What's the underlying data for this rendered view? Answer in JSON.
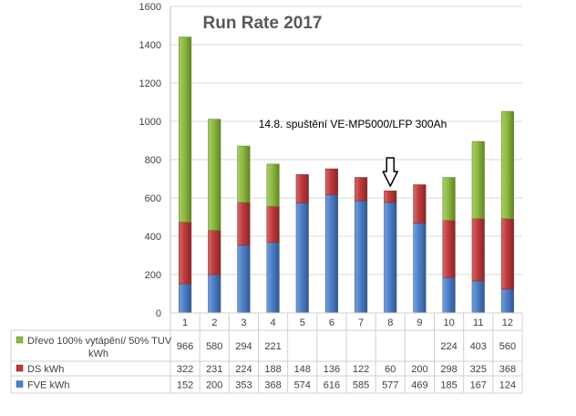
{
  "chart_data": {
    "type": "bar",
    "stacked": true,
    "title": "Run Rate 2017",
    "annotation": "14.8. spuštění VE-MP5000/LFP 300Ah",
    "annotation_category": "8",
    "categories": [
      "1",
      "2",
      "3",
      "4",
      "5",
      "6",
      "7",
      "8",
      "9",
      "10",
      "11",
      "12"
    ],
    "ylim": [
      0,
      1600
    ],
    "yticks": [
      0,
      200,
      400,
      600,
      800,
      1000,
      1200,
      1400,
      1600
    ],
    "grid": true,
    "xlabel": "",
    "ylabel": "",
    "series": [
      {
        "name": "FVE kWh",
        "color": "#4a7ec8",
        "values": [
          152,
          200,
          353,
          368,
          574,
          616,
          585,
          577,
          469,
          185,
          167,
          124
        ]
      },
      {
        "name": "DS kWh",
        "color": "#c0393b",
        "values": [
          322,
          231,
          224,
          188,
          148,
          136,
          122,
          60,
          200,
          298,
          325,
          368
        ]
      },
      {
        "name": "Dřevo 100% vytápění/ 50% TUV kWh",
        "color": "#8cba3c",
        "values": [
          966,
          580,
          294,
          221,
          null,
          null,
          null,
          null,
          null,
          224,
          403,
          560
        ]
      }
    ]
  }
}
